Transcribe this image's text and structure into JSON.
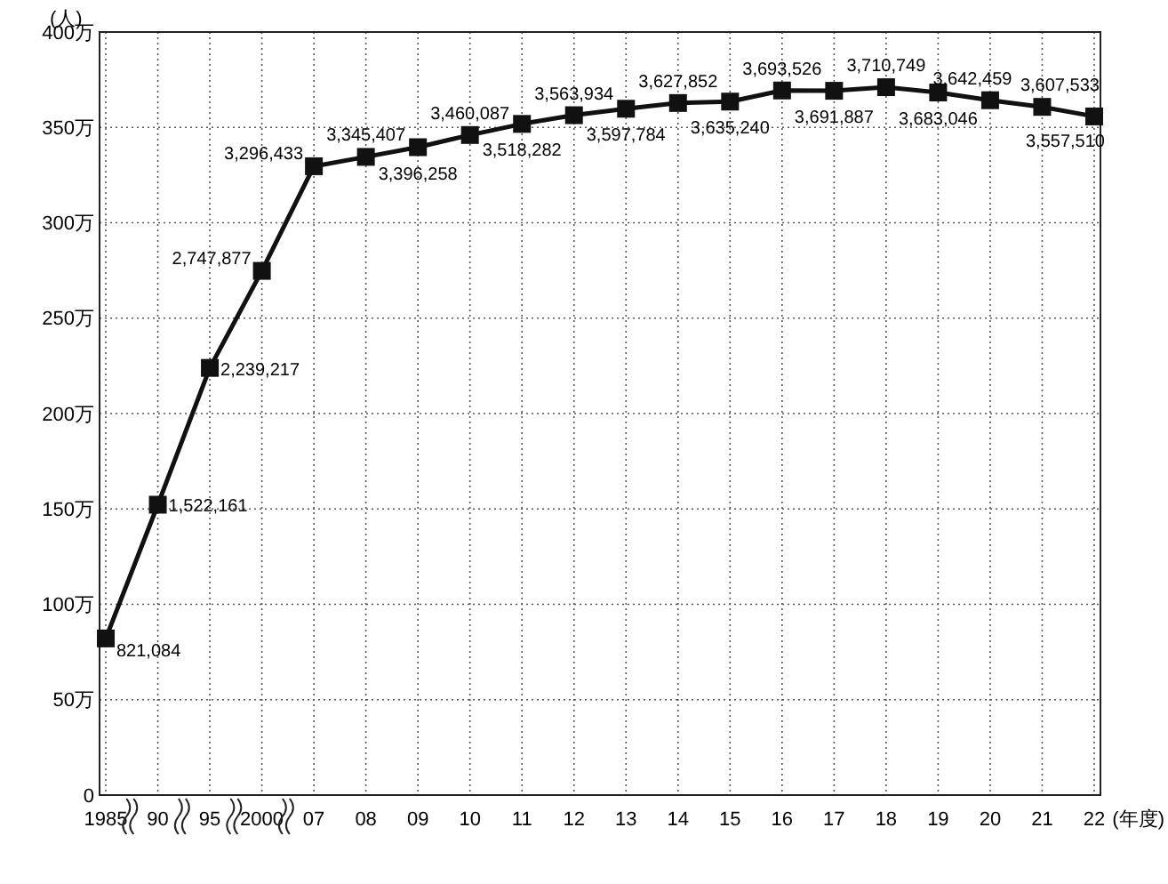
{
  "chart_data": {
    "type": "line",
    "ylabel": "(人)",
    "xlabel": "(年度)",
    "categories": [
      "1985",
      "90",
      "95",
      "2000",
      "07",
      "08",
      "09",
      "10",
      "11",
      "12",
      "13",
      "14",
      "15",
      "16",
      "17",
      "18",
      "19",
      "20",
      "21",
      "22"
    ],
    "series": [
      {
        "color": "#111111",
        "values": [
          82.1084,
          152.2161,
          223.9217,
          274.7877,
          329.6433,
          334.5407,
          339.6258,
          346.0087,
          351.8282,
          356.3934,
          359.7784,
          362.7852,
          363.524,
          369.3526,
          369.1887,
          371.0749,
          368.3046,
          364.2459,
          360.7533,
          355.751
        ]
      }
    ],
    "value_labels": [
      "821,084",
      "1,522,161",
      "2,239,217",
      "2,747,877",
      "3,296,433",
      "3,345,407",
      "3,396,258",
      "3,460,087",
      "3,518,282",
      "3,563,934",
      "3,597,784",
      "3,627,852",
      "3,635,240",
      "3,693,526",
      "3,691,887",
      "3,710,749",
      "3,683,046",
      "3,642,459",
      "3,607,533",
      "3,557,510"
    ],
    "ylim": [
      0,
      400
    ],
    "yticks": [
      0,
      {
        "value": 50,
        "label": "50万"
      },
      {
        "value": 100,
        "label": "100万"
      },
      {
        "value": 150,
        "label": "150万"
      },
      {
        "value": 200,
        "label": "200万"
      },
      {
        "value": 250,
        "label": "250万"
      },
      {
        "value": 300,
        "label": "300万"
      },
      {
        "value": 350,
        "label": "350万"
      },
      {
        "value": 400,
        "label": "400万"
      }
    ],
    "grid": true,
    "marker": "square",
    "line_style": "solid"
  }
}
